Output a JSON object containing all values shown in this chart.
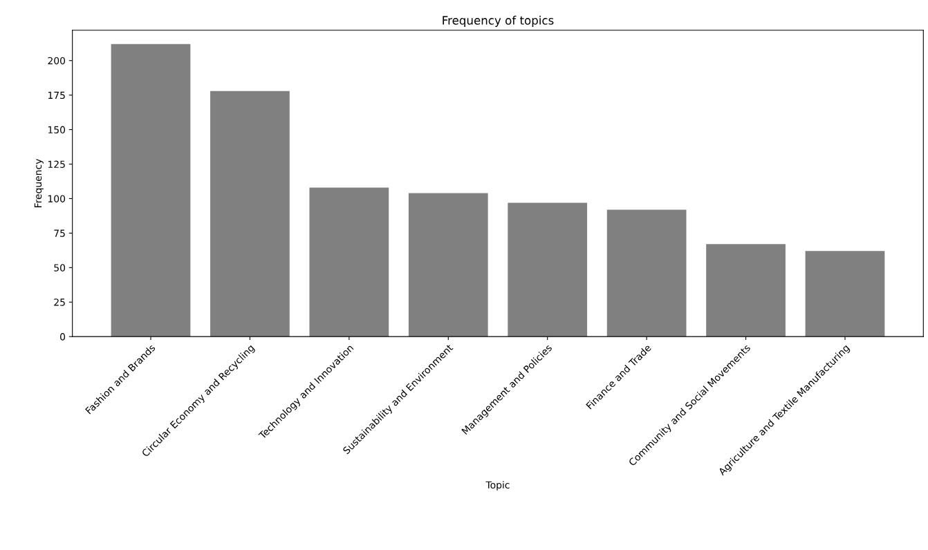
{
  "chart_data": {
    "type": "bar",
    "title": "Frequency of topics",
    "xlabel": "Topic",
    "ylabel": "Frequency",
    "categories": [
      "Fashion and Brands",
      "Circular Economy and Recycling",
      "Technology and Innovation",
      "Sustainability and Environment",
      "Management and Policies",
      "Finance and Trade",
      "Community and Social Movements",
      "Agriculture and Textile Manufacturing"
    ],
    "values": [
      212,
      178,
      108,
      104,
      97,
      92,
      67,
      62
    ],
    "color": "#808080",
    "ylim": [
      0,
      222
    ],
    "yticks": [
      0,
      25,
      50,
      75,
      100,
      125,
      150,
      175,
      200
    ]
  }
}
